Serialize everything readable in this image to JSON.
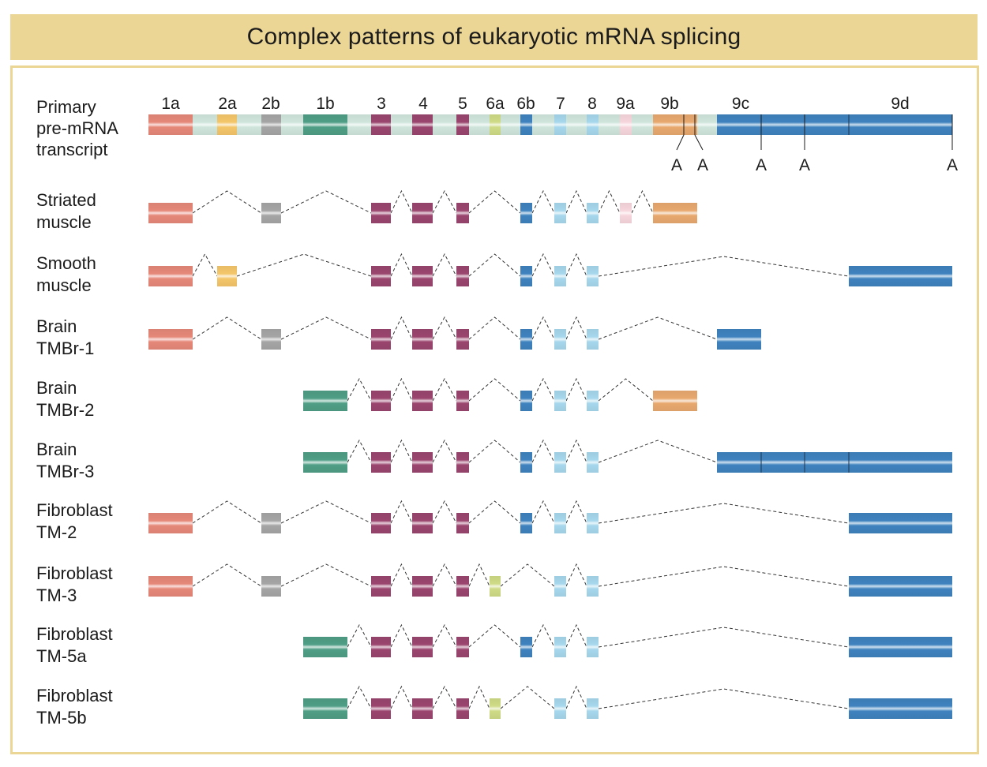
{
  "title": "Complex patterns of eukaryotic mRNA splicing",
  "colors": {
    "1a": "#e58879",
    "2a": "#f4c66a",
    "2b": "#a5a5a5",
    "1b": "#4f9e85",
    "3": "#9a456e",
    "4": "#9a456e",
    "5": "#9a456e",
    "6a": "#cfdb86",
    "6b": "#3f82be",
    "7": "#a6d7ec",
    "8": "#a6d7ec",
    "9a": "#f6d6dc",
    "9b": "#e8a86e",
    "9c": "#3f82be",
    "9d": "#3f82be",
    "intron": "#cfe5dc",
    "banner": "#ebd696"
  },
  "exon_labels": [
    "1a",
    "2a",
    "2b",
    "1b",
    "3",
    "4",
    "5",
    "6a",
    "6b",
    "7",
    "8",
    "9a",
    "9b",
    "9c",
    "9d"
  ],
  "polyA_label": "A",
  "primary": {
    "line1": "Primary",
    "line2": "pre-mRNA",
    "line3": "transcript"
  },
  "isoforms": [
    {
      "line1": "Striated",
      "line2": "muscle",
      "exons": [
        "1a",
        "2b",
        "3",
        "4",
        "5",
        "6b",
        "7",
        "8",
        "9a",
        "9b"
      ]
    },
    {
      "line1": "Smooth",
      "line2": "muscle",
      "exons": [
        "1a",
        "2a",
        "3",
        "4",
        "5",
        "6b",
        "7",
        "8",
        "9d"
      ]
    },
    {
      "line1": "Brain",
      "line2": "TMBr-1",
      "exons": [
        "1a",
        "2b",
        "3",
        "4",
        "5",
        "6b",
        "7",
        "8",
        "9c1"
      ]
    },
    {
      "line1": "Brain",
      "line2": "TMBr-2",
      "exons": [
        "1b",
        "3",
        "4",
        "5",
        "6b",
        "7",
        "8",
        "9b"
      ]
    },
    {
      "line1": "Brain",
      "line2": "TMBr-3",
      "exons": [
        "1b",
        "3",
        "4",
        "5",
        "6b",
        "7",
        "8",
        "9c"
      ]
    },
    {
      "line1": "Fibroblast",
      "line2": "TM-2",
      "exons": [
        "1a",
        "2b",
        "3",
        "4",
        "5",
        "6b",
        "7",
        "8",
        "9d"
      ]
    },
    {
      "line1": "Fibroblast",
      "line2": "TM-3",
      "exons": [
        "1a",
        "2b",
        "3",
        "4",
        "5",
        "6a",
        "7",
        "8",
        "9d"
      ]
    },
    {
      "line1": "Fibroblast",
      "line2": "TM-5a",
      "exons": [
        "1b",
        "3",
        "4",
        "5",
        "6b",
        "7",
        "8",
        "9d"
      ]
    },
    {
      "line1": "Fibroblast",
      "line2": "TM-5b",
      "exons": [
        "1b",
        "3",
        "4",
        "5",
        "6a",
        "7",
        "8",
        "9d"
      ]
    }
  ]
}
